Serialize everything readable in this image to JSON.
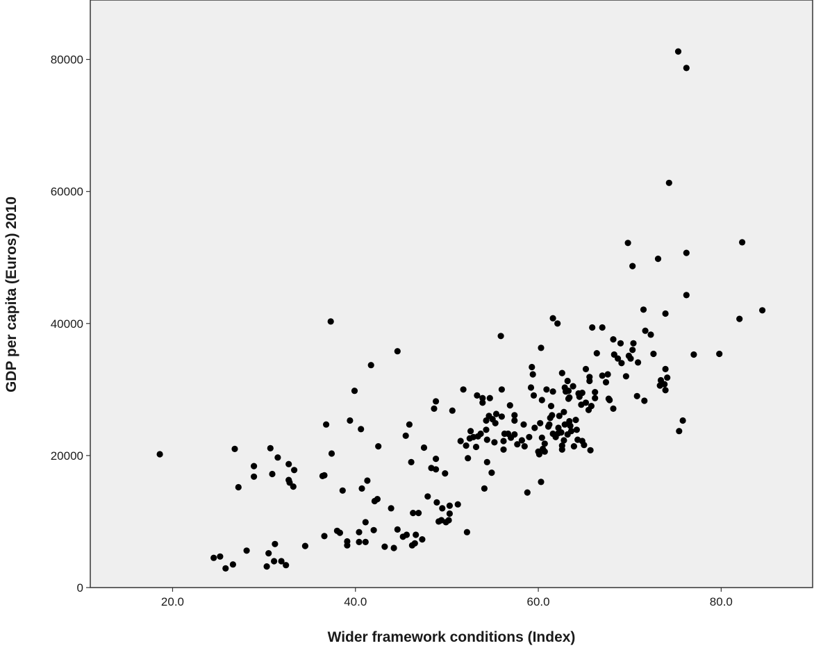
{
  "chart_data": {
    "type": "scatter",
    "xlabel": "Wider framework conditions (Index)",
    "ylabel": "GDP per capita (Euros) 2010",
    "xlim": [
      11,
      90
    ],
    "ylim": [
      0,
      89000
    ],
    "x_ticks": [
      20,
      40,
      60,
      80
    ],
    "x_tick_labels": [
      "20.0",
      "40.0",
      "60.0",
      "80.0"
    ],
    "y_ticks": [
      0,
      20000,
      40000,
      60000,
      80000
    ],
    "y_tick_labels": [
      "0",
      "20000",
      "40000",
      "60000",
      "80000"
    ],
    "grid": false,
    "legend": "none",
    "colors": {
      "plot_background": "#efefef",
      "marker": "#000000",
      "axis": "#333333"
    },
    "points": [
      [
        18.6,
        20200
      ],
      [
        24.5,
        4500
      ],
      [
        25.2,
        4700
      ],
      [
        25.8,
        2900
      ],
      [
        26.6,
        3500
      ],
      [
        26.8,
        21000
      ],
      [
        27.2,
        15200
      ],
      [
        28.1,
        5600
      ],
      [
        28.9,
        18400
      ],
      [
        28.9,
        16800
      ],
      [
        30.5,
        5200
      ],
      [
        30.3,
        3200
      ],
      [
        30.7,
        21100
      ],
      [
        30.9,
        17200
      ],
      [
        31.2,
        6600
      ],
      [
        31.1,
        4000
      ],
      [
        31.5,
        19700
      ],
      [
        31.9,
        4000
      ],
      [
        32.4,
        3400
      ],
      [
        32.7,
        18700
      ],
      [
        32.7,
        16300
      ],
      [
        32.8,
        15900
      ],
      [
        33.2,
        15300
      ],
      [
        33.3,
        17800
      ],
      [
        34.5,
        6300
      ],
      [
        36.4,
        16900
      ],
      [
        36.6,
        7800
      ],
      [
        36.6,
        17000
      ],
      [
        36.8,
        24700
      ],
      [
        37.3,
        40300
      ],
      [
        37.4,
        20300
      ],
      [
        38.0,
        8600
      ],
      [
        38.3,
        8300
      ],
      [
        38.6,
        14700
      ],
      [
        39.1,
        6400
      ],
      [
        39.1,
        7000
      ],
      [
        39.4,
        25300
      ],
      [
        39.9,
        29800
      ],
      [
        40.4,
        8400
      ],
      [
        40.4,
        6900
      ],
      [
        40.6,
        24000
      ],
      [
        40.7,
        15000
      ],
      [
        41.1,
        9900
      ],
      [
        41.1,
        6900
      ],
      [
        41.3,
        16200
      ],
      [
        41.7,
        33700
      ],
      [
        42.0,
        8700
      ],
      [
        42.1,
        13100
      ],
      [
        42.4,
        13400
      ],
      [
        42.5,
        21400
      ],
      [
        43.2,
        6200
      ],
      [
        43.9,
        12000
      ],
      [
        44.2,
        6000
      ],
      [
        44.6,
        35800
      ],
      [
        44.6,
        8800
      ],
      [
        45.2,
        7700
      ],
      [
        45.5,
        23000
      ],
      [
        45.9,
        24700
      ],
      [
        45.6,
        8000
      ],
      [
        46.1,
        19000
      ],
      [
        46.2,
        6400
      ],
      [
        46.3,
        11300
      ],
      [
        46.5,
        6700
      ],
      [
        46.6,
        8000
      ],
      [
        46.9,
        11300
      ],
      [
        47.3,
        7300
      ],
      [
        47.5,
        21200
      ],
      [
        47.9,
        13800
      ],
      [
        48.3,
        18100
      ],
      [
        48.6,
        27100
      ],
      [
        48.8,
        17900
      ],
      [
        48.8,
        28200
      ],
      [
        48.8,
        19500
      ],
      [
        48.9,
        12900
      ],
      [
        49.1,
        10000
      ],
      [
        49.4,
        10200
      ],
      [
        49.5,
        12000
      ],
      [
        49.8,
        17300
      ],
      [
        49.9,
        9900
      ],
      [
        50.3,
        11200
      ],
      [
        50.2,
        10200
      ],
      [
        50.3,
        12400
      ],
      [
        50.6,
        26800
      ],
      [
        51.2,
        12600
      ],
      [
        51.5,
        22200
      ],
      [
        51.8,
        30000
      ],
      [
        52.1,
        21500
      ],
      [
        52.2,
        8400
      ],
      [
        52.3,
        19600
      ],
      [
        52.5,
        22600
      ],
      [
        52.6,
        23700
      ],
      [
        52.9,
        22800
      ],
      [
        53.2,
        21300
      ],
      [
        53.3,
        29100
      ],
      [
        53.4,
        22900
      ],
      [
        53.7,
        23300
      ],
      [
        53.9,
        28000
      ],
      [
        53.9,
        28700
      ],
      [
        54.1,
        15000
      ],
      [
        54.3,
        23900
      ],
      [
        54.3,
        25300
      ],
      [
        54.4,
        22400
      ],
      [
        54.4,
        19000
      ],
      [
        54.6,
        26000
      ],
      [
        54.7,
        28700
      ],
      [
        54.9,
        17400
      ],
      [
        55.0,
        25500
      ],
      [
        55.2,
        22000
      ],
      [
        55.3,
        24900
      ],
      [
        55.4,
        26300
      ],
      [
        55.9,
        38100
      ],
      [
        56.0,
        30000
      ],
      [
        56.0,
        25900
      ],
      [
        56.2,
        20900
      ],
      [
        56.2,
        22200
      ],
      [
        56.3,
        23300
      ],
      [
        56.7,
        23300
      ],
      [
        56.9,
        27600
      ],
      [
        57.0,
        22700
      ],
      [
        57.4,
        25300
      ],
      [
        57.4,
        26100
      ],
      [
        57.4,
        23200
      ],
      [
        57.7,
        21700
      ],
      [
        58.2,
        22300
      ],
      [
        58.4,
        24700
      ],
      [
        58.5,
        21400
      ],
      [
        58.8,
        14400
      ],
      [
        59.0,
        22800
      ],
      [
        59.2,
        30300
      ],
      [
        59.3,
        33400
      ],
      [
        59.4,
        32300
      ],
      [
        59.5,
        29100
      ],
      [
        59.6,
        24200
      ],
      [
        60.0,
        20600
      ],
      [
        60.1,
        20200
      ],
      [
        60.2,
        24900
      ],
      [
        60.3,
        36300
      ],
      [
        60.3,
        16000
      ],
      [
        60.4,
        22700
      ],
      [
        60.4,
        28400
      ],
      [
        60.5,
        21000
      ],
      [
        60.7,
        21800
      ],
      [
        60.7,
        20600
      ],
      [
        60.9,
        30000
      ],
      [
        61.1,
        24400
      ],
      [
        61.2,
        24700
      ],
      [
        61.3,
        25700
      ],
      [
        61.4,
        27500
      ],
      [
        61.5,
        26100
      ],
      [
        61.6,
        29700
      ],
      [
        61.6,
        23300
      ],
      [
        61.6,
        40800
      ],
      [
        61.9,
        22800
      ],
      [
        62.1,
        40000
      ],
      [
        62.2,
        24200
      ],
      [
        62.2,
        23400
      ],
      [
        62.3,
        26000
      ],
      [
        62.5,
        23500
      ],
      [
        62.6,
        20900
      ],
      [
        62.6,
        32500
      ],
      [
        62.6,
        21500
      ],
      [
        62.8,
        22300
      ],
      [
        62.8,
        26600
      ],
      [
        62.9,
        30300
      ],
      [
        62.9,
        24700
      ],
      [
        63.0,
        29700
      ],
      [
        63.2,
        23200
      ],
      [
        63.2,
        31300
      ],
      [
        63.3,
        29800
      ],
      [
        63.3,
        28600
      ],
      [
        63.4,
        25200
      ],
      [
        63.4,
        28800
      ],
      [
        63.5,
        24500
      ],
      [
        63.6,
        23700
      ],
      [
        63.8,
        30500
      ],
      [
        63.9,
        21400
      ],
      [
        64.1,
        25400
      ],
      [
        64.2,
        23900
      ],
      [
        64.3,
        22400
      ],
      [
        64.4,
        29400
      ],
      [
        64.5,
        28900
      ],
      [
        64.7,
        27700
      ],
      [
        64.8,
        22200
      ],
      [
        64.8,
        29500
      ],
      [
        65.0,
        21600
      ],
      [
        65.2,
        28000
      ],
      [
        65.2,
        33100
      ],
      [
        65.5,
        26900
      ],
      [
        65.6,
        31300
      ],
      [
        65.6,
        31900
      ],
      [
        65.7,
        20800
      ],
      [
        65.8,
        27500
      ],
      [
        65.9,
        39400
      ],
      [
        66.2,
        29600
      ],
      [
        66.2,
        28700
      ],
      [
        66.4,
        35500
      ],
      [
        67.0,
        39400
      ],
      [
        67.0,
        32100
      ],
      [
        67.4,
        31100
      ],
      [
        67.6,
        32300
      ],
      [
        67.7,
        28600
      ],
      [
        67.8,
        28400
      ],
      [
        68.2,
        27100
      ],
      [
        68.2,
        37600
      ],
      [
        68.3,
        35300
      ],
      [
        68.7,
        34700
      ],
      [
        69.0,
        37000
      ],
      [
        69.1,
        34000
      ],
      [
        69.6,
        32000
      ],
      [
        69.8,
        52200
      ],
      [
        69.9,
        35100
      ],
      [
        70.1,
        34700
      ],
      [
        70.3,
        36000
      ],
      [
        70.3,
        48700
      ],
      [
        70.4,
        37000
      ],
      [
        70.8,
        29000
      ],
      [
        70.9,
        34100
      ],
      [
        71.5,
        42100
      ],
      [
        71.6,
        28300
      ],
      [
        71.7,
        38900
      ],
      [
        72.3,
        38300
      ],
      [
        72.6,
        35400
      ],
      [
        73.1,
        49800
      ],
      [
        73.3,
        30600
      ],
      [
        73.4,
        31400
      ],
      [
        73.8,
        30800
      ],
      [
        73.9,
        41500
      ],
      [
        73.9,
        33100
      ],
      [
        73.9,
        29900
      ],
      [
        74.1,
        31800
      ],
      [
        74.3,
        61300
      ],
      [
        75.3,
        81200
      ],
      [
        75.4,
        23700
      ],
      [
        75.8,
        25300
      ],
      [
        76.2,
        78700
      ],
      [
        76.2,
        44300
      ],
      [
        76.2,
        50700
      ],
      [
        77.0,
        35300
      ],
      [
        79.8,
        35400
      ],
      [
        82.0,
        40700
      ],
      [
        82.3,
        52300
      ],
      [
        84.5,
        42000
      ]
    ]
  }
}
